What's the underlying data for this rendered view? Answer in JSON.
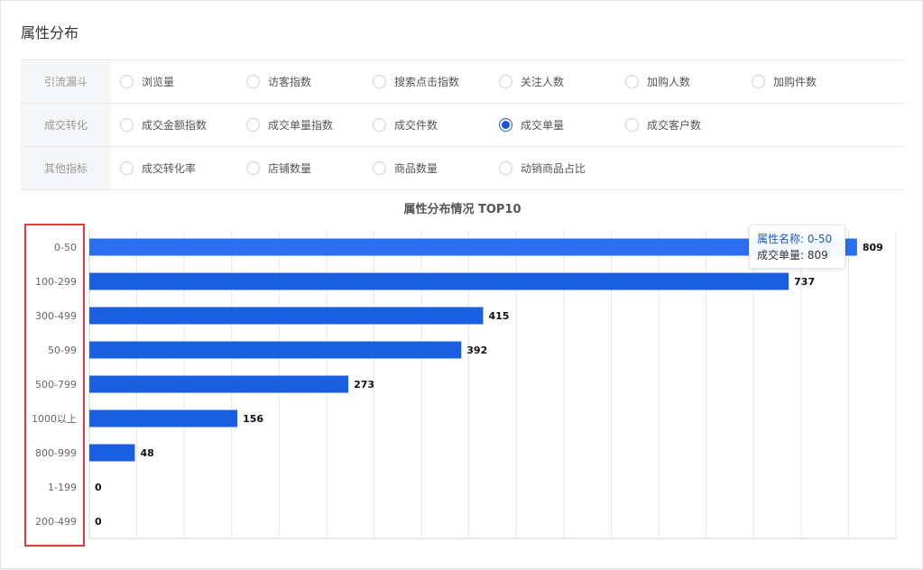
{
  "page": {
    "title": "属性分布"
  },
  "metrics": [
    {
      "label": "引流漏斗",
      "options": [
        {
          "label": "浏览量",
          "checked": false
        },
        {
          "label": "访客指数",
          "checked": false
        },
        {
          "label": "搜索点击指数",
          "checked": false
        },
        {
          "label": "关注人数",
          "checked": false
        },
        {
          "label": "加购人数",
          "checked": false
        },
        {
          "label": "加购件数",
          "checked": false
        }
      ]
    },
    {
      "label": "成交转化",
      "options": [
        {
          "label": "成交金额指数",
          "checked": false
        },
        {
          "label": "成交单量指数",
          "checked": false
        },
        {
          "label": "成交件数",
          "checked": false
        },
        {
          "label": "成交单量",
          "checked": true
        },
        {
          "label": "成交客户数",
          "checked": false
        }
      ]
    },
    {
      "label": "其他指标",
      "options": [
        {
          "label": "成交转化率",
          "checked": false
        },
        {
          "label": "店铺数量",
          "checked": false
        },
        {
          "label": "商品数量",
          "checked": false
        },
        {
          "label": "动销商品占比",
          "checked": false
        }
      ]
    }
  ],
  "chart_data": {
    "type": "bar",
    "orientation": "horizontal",
    "title": "属性分布情况 TOP10",
    "categories": [
      "0-50",
      "100-299",
      "300-499",
      "50-99",
      "500-799",
      "1000以上",
      "800-999",
      "1-199",
      "200-499"
    ],
    "values": [
      809,
      737,
      415,
      392,
      273,
      156,
      48,
      0,
      0
    ],
    "xlim": [
      0,
      850
    ],
    "grid": true,
    "bar_color": "#1a5fe0",
    "highlight_color": "#2b6ff0"
  },
  "tooltip": {
    "name_label": "属性名称: 0-50",
    "value_label": "成交单量: 809"
  },
  "colors": {
    "accent": "#1a56db",
    "annotation_box": "#e53935"
  }
}
